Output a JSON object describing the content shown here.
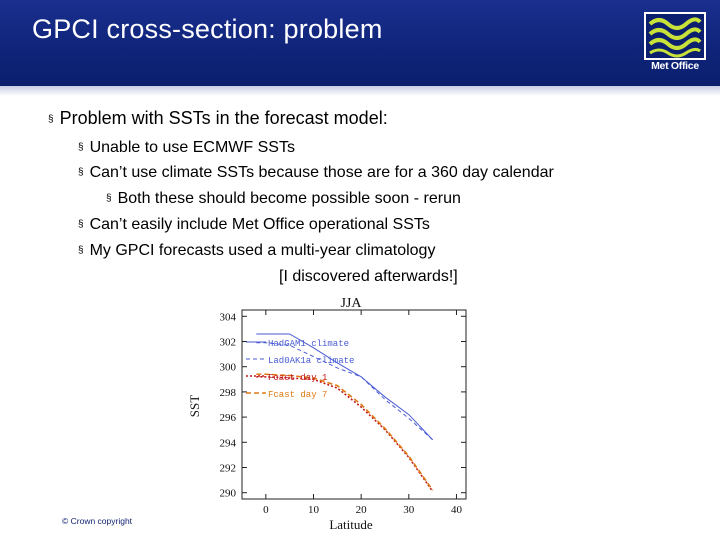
{
  "slide": {
    "title": "GPCI cross-section: problem",
    "logo_text": "Met Office",
    "bullets": [
      {
        "level": 1,
        "text": "Problem with SSTs in the forecast model:"
      },
      {
        "level": 2,
        "text": "Unable to use ECMWF SSTs"
      },
      {
        "level": 2,
        "text": "Can’t use climate SSTs because those are for a 360 day calendar"
      },
      {
        "level": 3,
        "text": "Both these should become possible soon - rerun"
      },
      {
        "level": 2,
        "text": "Can’t easily include Met Office operational SSTs"
      },
      {
        "level": 2,
        "text": "My GPCI forecasts used a multi-year climatology"
      }
    ],
    "note": "[I discovered afterwards!]",
    "bullet_glyph": "§",
    "copyright": "© Crown copyright"
  },
  "chart_data": {
    "type": "line",
    "title": "JJA",
    "xlabel": "Latitude",
    "ylabel": "SST",
    "xlim": [
      -5,
      42
    ],
    "ylim": [
      289.5,
      304.5
    ],
    "xticks": [
      0,
      10,
      20,
      30,
      40
    ],
    "yticks": [
      290,
      292,
      294,
      296,
      298,
      300,
      302,
      304
    ],
    "series": [
      {
        "name": "HadGAM1 climate",
        "color": "#4a5bd4",
        "dash": "none",
        "x": [
          -2,
          0,
          5,
          10,
          15,
          20,
          25,
          30,
          35
        ],
        "y": [
          302.6,
          302.6,
          302.6,
          301.5,
          300.3,
          299.2,
          297.6,
          296.2,
          294.2
        ]
      },
      {
        "name": "Lad0AK1a climate",
        "color": "#4a5bd4",
        "dash": "4,3",
        "x": [
          -2,
          0,
          5,
          10,
          15,
          20,
          25,
          30,
          35
        ],
        "y": [
          301.9,
          301.9,
          301.7,
          300.8,
          299.9,
          299.2,
          297.4,
          295.9,
          294.2
        ]
      },
      {
        "name": "Fcast day 1",
        "color": "#c21a1a",
        "dash": "2,2",
        "x": [
          -2,
          0,
          5,
          10,
          15,
          20,
          25,
          30,
          35
        ],
        "y": [
          299.2,
          299.2,
          299.1,
          299.0,
          298.3,
          296.8,
          295.0,
          292.8,
          290.1
        ]
      },
      {
        "name": "Fcast day 7",
        "color": "#e07a12",
        "dash": "5,3",
        "x": [
          -2,
          0,
          5,
          10,
          15,
          20,
          25,
          30,
          35
        ],
        "y": [
          299.4,
          299.4,
          299.3,
          299.1,
          298.5,
          297.0,
          295.1,
          292.9,
          290.2
        ]
      }
    ],
    "legend_position": "top-left"
  }
}
